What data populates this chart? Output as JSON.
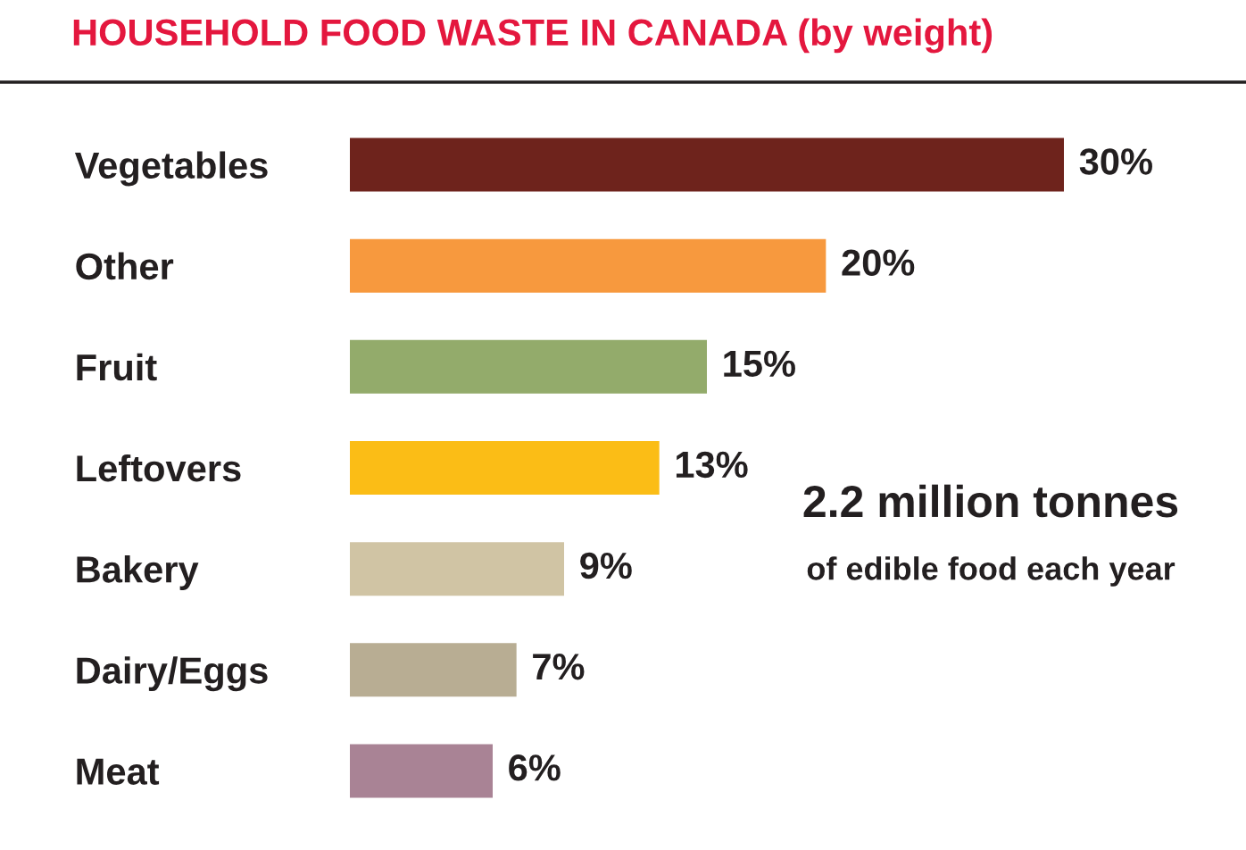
{
  "chart_data": {
    "type": "bar",
    "orientation": "horizontal",
    "title": "HOUSEHOLD FOOD WASTE IN CANADA (by weight)",
    "categories": [
      "Vegetables",
      "Other",
      "Fruit",
      "Leftovers",
      "Bakery",
      "Dairy/Eggs",
      "Meat"
    ],
    "values": [
      30,
      20,
      15,
      13,
      9,
      7,
      6
    ],
    "value_labels": [
      "30%",
      "20%",
      "15%",
      "13%",
      "9%",
      "7%",
      "6%"
    ],
    "colors": [
      "#6e231c",
      "#f7993e",
      "#93ab6b",
      "#fbbd16",
      "#d0c4a4",
      "#b8ad93",
      "#a98395"
    ],
    "annotations": [
      "2.2 million tonnes",
      "of edible food each year"
    ],
    "grid": false,
    "legend": false
  }
}
